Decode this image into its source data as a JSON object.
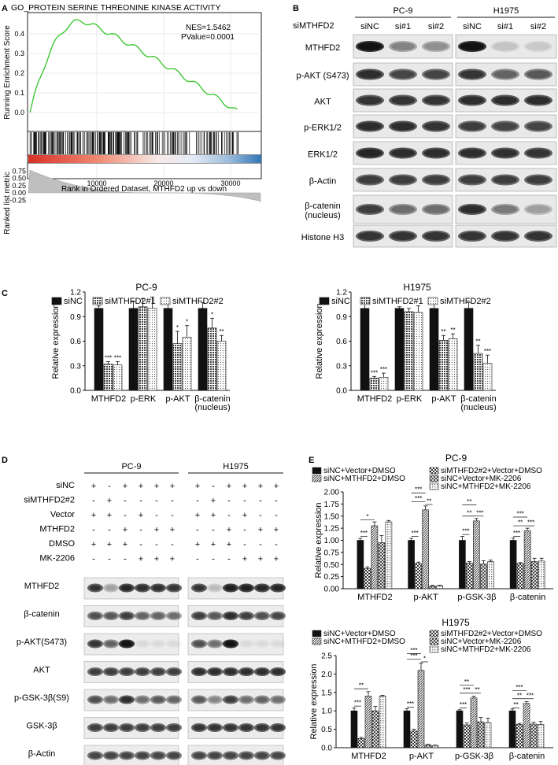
{
  "panel_letters": {
    "a": "A",
    "b": "B",
    "c": "C",
    "d": "D",
    "e": "E"
  },
  "panel_a": {
    "title": "GO_PROTEIN SERINE THREONINE KINASE ACTIVITY",
    "nes": "NES=1.5462",
    "pvalue": "PValue=0.0001",
    "ylabel_top": "Running Enrichment Score",
    "ylabel_bottom": "Ranked list metric",
    "xlabel": "Rank in Ordered Dataset, MTHFD2 up vs down",
    "es_ticks": [
      "0.4",
      "0.3",
      "0.2",
      "0.1",
      "0.0"
    ],
    "metric_ticks": [
      "0.75",
      "0.50",
      "0.25",
      "0.00",
      "-0.25"
    ],
    "x_ticks": [
      "10000",
      "20000",
      "30000"
    ],
    "colors": {
      "curve": "#3ec832",
      "red": "#d73027",
      "blue": "#2f77b4",
      "grey": "#bfbfbf"
    }
  },
  "panel_b": {
    "row_header": "siMTHFD2",
    "groups": [
      "PC-9",
      "H1975"
    ],
    "lanes": [
      "siNC",
      "si#1",
      "si#2"
    ],
    "rows": [
      "MTHFD2",
      "p-AKT (S473)",
      "AKT",
      "p-ERK1/2",
      "ERK1/2",
      "β-Actin",
      "β-catenin\n(nucleus)",
      "Histone H3"
    ]
  },
  "panel_c": {
    "ylabel": "Relative expression",
    "legend": [
      "siNC",
      "siMTHFD2#1",
      "siMTHFD2#2"
    ],
    "y_ticks": [
      "0.0",
      "0.3",
      "0.6",
      "0.9",
      "1.2"
    ],
    "categories": [
      "MTHFD2",
      "p-ERK",
      "p-AKT",
      "β-catenin",
      "(nucleus)"
    ]
  },
  "panel_d": {
    "groups": [
      "PC-9",
      "H1975"
    ],
    "conditions": [
      {
        "label": "siNC",
        "signs": [
          "+",
          "-",
          "+",
          "+",
          "+",
          "+"
        ]
      },
      {
        "label": "siMTHFD2#2",
        "signs": [
          "-",
          "+",
          "-",
          "-",
          "-",
          "-"
        ]
      },
      {
        "label": "Vector",
        "signs": [
          "+",
          "+",
          "-",
          "+",
          "-",
          "-"
        ]
      },
      {
        "label": "MTHFD2",
        "signs": [
          "-",
          "-",
          "+",
          "-",
          "+",
          "+"
        ]
      },
      {
        "label": "DMSO",
        "signs": [
          "+",
          "+",
          "+",
          "-",
          "-",
          "-"
        ]
      },
      {
        "label": "MK-2206",
        "signs": [
          "-",
          "-",
          "-",
          "+",
          "+",
          "+"
        ]
      }
    ],
    "blots": [
      "MTHFD2",
      "β-catenin",
      "p-AKT(S473)",
      "AKT",
      "p-GSK-3β(S9)",
      "GSK-3β",
      "β-Actin"
    ]
  },
  "panel_e": {
    "ylabel": "Relative expression",
    "legend": [
      "siNC+Vector+DMSO",
      "siMTHFD2#2+Vector+DMSO",
      "siNC+MTHFD2+DMSO",
      "siNC+Vector+MK-2206",
      "siNC+MTHFD2+MK-2206"
    ],
    "categories": [
      "MTHFD2",
      "p-AKT",
      "p-GSK-3β",
      "β-catenin"
    ],
    "y_ticks": [
      "0.00",
      "0.25",
      "0.50",
      "0.75",
      "1.00",
      "1.25",
      "1.50",
      "1.75",
      "2.00"
    ]
  },
  "chart_data": [
    {
      "type": "bar",
      "title": "PC-9",
      "ylabel": "Relative expression",
      "ylim": [
        0,
        1.2
      ],
      "categories": [
        "MTHFD2",
        "p-ERK",
        "p-AKT",
        "β-catenin (nucleus)"
      ],
      "series": [
        {
          "name": "siNC",
          "values": [
            1.0,
            1.0,
            1.0,
            1.0
          ],
          "errors": [
            0.03,
            0.08,
            0.08,
            0.07
          ]
        },
        {
          "name": "siMTHFD2#1",
          "values": [
            0.32,
            1.02,
            0.57,
            0.76
          ],
          "errors": [
            0.03,
            0.1,
            0.15,
            0.12
          ]
        },
        {
          "name": "siMTHFD2#2",
          "values": [
            0.31,
            1.0,
            0.65,
            0.6
          ],
          "errors": [
            0.04,
            0.14,
            0.14,
            0.07
          ]
        }
      ],
      "annotations": [
        [
          "***",
          "***"
        ],
        [
          "",
          ""
        ],
        [
          "*",
          "*"
        ],
        [
          "*",
          "**"
        ]
      ]
    },
    {
      "type": "bar",
      "title": "H1975",
      "ylabel": "Relative expression",
      "ylim": [
        0,
        1.2
      ],
      "categories": [
        "MTHFD2",
        "p-ERK",
        "p-AKT",
        "β-catenin (nucleus)"
      ],
      "series": [
        {
          "name": "siNC",
          "values": [
            1.0,
            1.0,
            1.0,
            1.0
          ],
          "errors": [
            0.05,
            0.02,
            0.12,
            0.07
          ]
        },
        {
          "name": "siMTHFD2#1",
          "values": [
            0.15,
            0.96,
            0.61,
            0.45
          ],
          "errors": [
            0.02,
            0.04,
            0.06,
            0.1
          ]
        },
        {
          "name": "siMTHFD2#2",
          "values": [
            0.16,
            0.95,
            0.63,
            0.33
          ],
          "errors": [
            0.05,
            0.08,
            0.06,
            0.1
          ]
        }
      ],
      "annotations": [
        [
          "***",
          "***"
        ],
        [
          "",
          ""
        ],
        [
          "**",
          "**"
        ],
        [
          "**",
          "***"
        ]
      ]
    },
    {
      "type": "bar",
      "title": "PC-9",
      "ylabel": "Relative expression",
      "ylim": [
        0,
        2.0
      ],
      "categories": [
        "MTHFD2",
        "p-AKT",
        "p-GSK-3β",
        "β-catenin"
      ],
      "series": [
        {
          "name": "siNC+Vector+DMSO",
          "values": [
            1.0,
            1.0,
            1.0,
            1.0
          ],
          "errors": [
            0.04,
            0.04,
            0.08,
            0.05
          ]
        },
        {
          "name": "siMTHFD2#2+Vector+DMSO",
          "values": [
            0.42,
            0.52,
            0.53,
            0.52
          ],
          "errors": [
            0.03,
            0.03,
            0.03,
            0.02
          ]
        },
        {
          "name": "siNC+MTHFD2+DMSO",
          "values": [
            1.3,
            1.63,
            1.4,
            1.2
          ],
          "errors": [
            0.08,
            0.08,
            0.05,
            0.05
          ]
        },
        {
          "name": "siNC+Vector+MK-2206",
          "values": [
            0.95,
            0.05,
            0.51,
            0.56
          ],
          "errors": [
            0.15,
            0.02,
            0.07,
            0.07
          ]
        },
        {
          "name": "siNC+MTHFD2+MK-2206",
          "values": [
            1.38,
            0.06,
            0.56,
            0.57
          ],
          "errors": [
            0.03,
            0.01,
            0.03,
            0.06
          ]
        }
      ]
    },
    {
      "type": "bar",
      "title": "H1975",
      "ylabel": "Relative expression",
      "ylim": [
        0,
        2.5
      ],
      "categories": [
        "MTHFD2",
        "p-AKT",
        "p-GSK-3β",
        "β-catenin"
      ],
      "series": [
        {
          "name": "siNC+Vector+DMSO",
          "values": [
            1.0,
            1.0,
            1.0,
            1.0
          ],
          "errors": [
            0.08,
            0.06,
            0.03,
            0.05
          ]
        },
        {
          "name": "siMTHFD2#2+Vector+DMSO",
          "values": [
            0.25,
            0.45,
            0.62,
            0.63
          ],
          "errors": [
            0.03,
            0.05,
            0.05,
            0.03
          ]
        },
        {
          "name": "siNC+MTHFD2+DMSO",
          "values": [
            1.4,
            2.1,
            1.35,
            1.2
          ],
          "errors": [
            0.12,
            0.2,
            0.05,
            0.05
          ]
        },
        {
          "name": "siNC+Vector+MK-2206",
          "values": [
            1.0,
            0.07,
            0.7,
            0.64
          ],
          "errors": [
            0.12,
            0.02,
            0.12,
            0.05
          ]
        },
        {
          "name": "siNC+MTHFD2+MK-2206",
          "values": [
            1.4,
            0.06,
            0.68,
            0.63
          ],
          "errors": [
            0.02,
            0.01,
            0.12,
            0.08
          ]
        }
      ]
    }
  ]
}
